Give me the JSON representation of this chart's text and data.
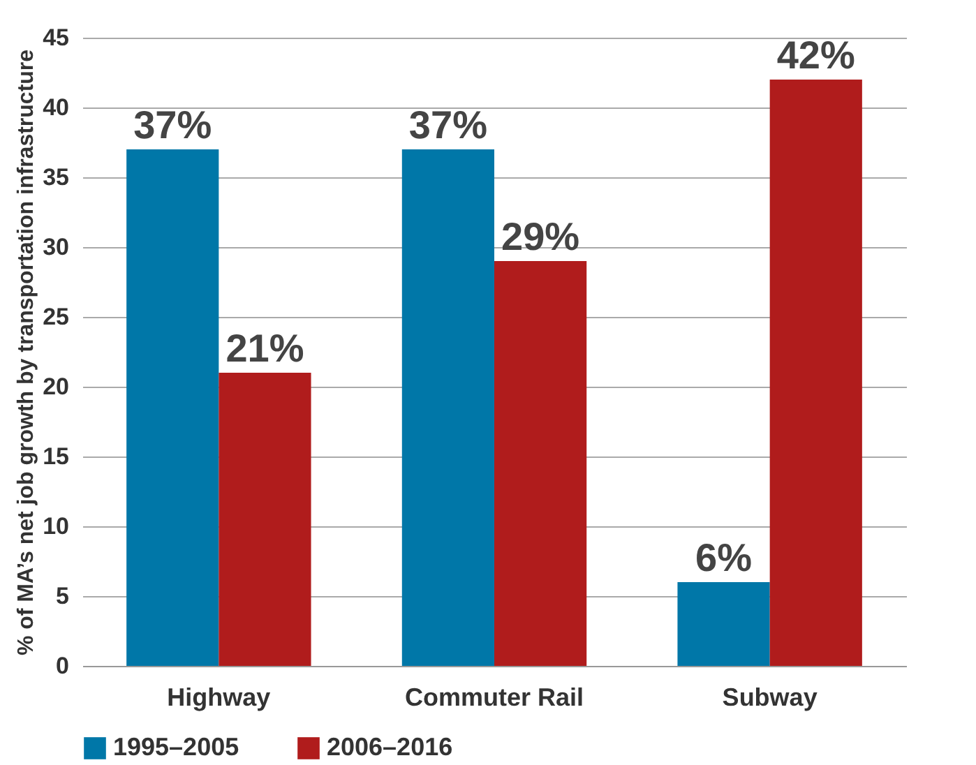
{
  "chart_data": {
    "type": "bar",
    "ylabel": "% of MA’s net job growth by transportation infrastructure",
    "categories": [
      "Highway",
      "Commuter Rail",
      "Subway"
    ],
    "series": [
      {
        "name": "1995–2005",
        "color": "#0077a8",
        "values": [
          37,
          37,
          6
        ],
        "value_labels": [
          "37%",
          "37%",
          "6%"
        ]
      },
      {
        "name": "2006–2016",
        "color": "#b01c1c",
        "values": [
          21,
          29,
          42
        ],
        "value_labels": [
          "21%",
          "29%",
          "42%"
        ]
      }
    ],
    "ylim": [
      0,
      45
    ],
    "yticks": [
      0,
      5,
      10,
      15,
      20,
      25,
      30,
      35,
      40,
      45
    ],
    "grid": "y",
    "legend": "bottom"
  }
}
